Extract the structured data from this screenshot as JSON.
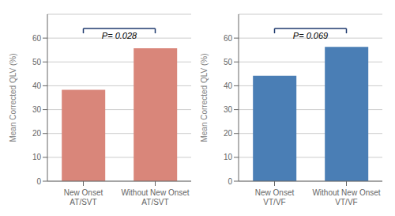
{
  "chart_data": [
    {
      "type": "bar",
      "categories": [
        "New Onset\nAT/SVT",
        "Without New Onset\nAT/SVT"
      ],
      "values": [
        38.3,
        55.7
      ],
      "color": "#d9867a",
      "ylabel": "Mean Corrected QLV (%)",
      "ylim": [
        0,
        70
      ],
      "yticks": [
        0,
        10,
        20,
        30,
        40,
        50,
        60
      ],
      "grid": true,
      "annotations": [
        {
          "text": "P= 0.028",
          "bracket": [
            62,
            64
          ],
          "color": "#1f3a6e"
        }
      ]
    },
    {
      "type": "bar",
      "categories": [
        "New Onset\nVT/VF",
        "Without New Onset\nVT/VF"
      ],
      "values": [
        44.2,
        56.3
      ],
      "color": "#4a7eb5",
      "ylabel": "Mean Corrected QLV (%)",
      "ylim": [
        0,
        70
      ],
      "yticks": [
        0,
        10,
        20,
        30,
        40,
        50,
        60
      ],
      "grid": true,
      "annotations": [
        {
          "text": "P= 0.069",
          "bracket": [
            62,
            64
          ],
          "color": "#1f3a6e"
        }
      ]
    }
  ]
}
